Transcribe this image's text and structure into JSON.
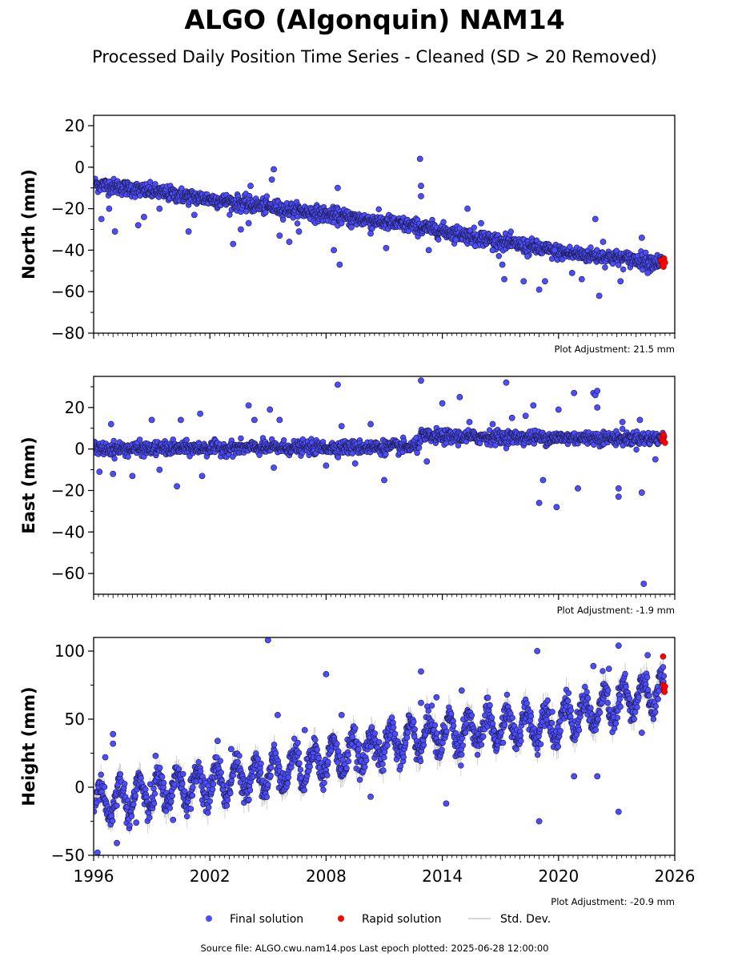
{
  "title": "ALGO (Algonquin) NAM14",
  "subtitle": "Processed Daily Position Time Series - Cleaned (SD > 20 Removed)",
  "colors": {
    "final": "#4d4dff",
    "rapid": "#ff0000",
    "stddev": "#c8c8c8",
    "marker_edge": "#1a1a40"
  },
  "legend": {
    "placement": "bottom-center",
    "final_label": "Final solution",
    "rapid_label": "Rapid solution",
    "std_label": "Std. Dev."
  },
  "footer": "Source file: ALGO.cwu.nam14.pos  Last epoch plotted: 2025-06-28 12:00:00",
  "chart_data": [
    {
      "type": "scatter",
      "ylabel": "North (mm)",
      "adjustment_label": "Plot Adjustment: 21.5 mm",
      "xlim": [
        1996.0,
        2026.0
      ],
      "ylim": [
        -80,
        25
      ],
      "yticks": [
        20,
        0,
        -20,
        -40,
        -60,
        -80
      ],
      "ytick_labels": [
        "20",
        "0",
        "−20",
        "−40",
        "−60",
        "−80"
      ],
      "trend": [
        [
          1996.0,
          -8
        ],
        [
          2013.0,
          -29
        ],
        [
          2016.0,
          -34
        ],
        [
          2020.0,
          -41
        ],
        [
          2025.5,
          -46
        ]
      ],
      "noise_sd": 1.8,
      "stddev_len": 1.5,
      "outliers": [
        [
          1996.4,
          -25
        ],
        [
          1996.8,
          -20
        ],
        [
          1997.1,
          -31
        ],
        [
          1998.3,
          -28
        ],
        [
          1998.6,
          -24
        ],
        [
          1999.4,
          -20
        ],
        [
          2000.9,
          -31
        ],
        [
          2001.2,
          -23
        ],
        [
          2003.2,
          -37
        ],
        [
          2003.6,
          -30
        ],
        [
          2004.0,
          -27
        ],
        [
          2004.1,
          -9
        ],
        [
          2005.2,
          -6
        ],
        [
          2005.3,
          -1
        ],
        [
          2005.6,
          -33
        ],
        [
          2006.1,
          -36
        ],
        [
          2006.6,
          -31
        ],
        [
          2008.6,
          -10
        ],
        [
          2008.7,
          -47
        ],
        [
          2008.4,
          -40
        ],
        [
          2009.3,
          -29
        ],
        [
          2010.3,
          -32
        ],
        [
          2011.1,
          -39
        ],
        [
          2012.9,
          -14
        ],
        [
          2012.9,
          -9
        ],
        [
          2012.85,
          4
        ],
        [
          2013.3,
          -40
        ],
        [
          2014.7,
          -35
        ],
        [
          2015.3,
          -20
        ],
        [
          2015.7,
          -38
        ],
        [
          2016.0,
          -27
        ],
        [
          2016.6,
          -40
        ],
        [
          2017.1,
          -47
        ],
        [
          2017.2,
          -54
        ],
        [
          2018.2,
          -55
        ],
        [
          2018.4,
          -43
        ],
        [
          2019.0,
          -59
        ],
        [
          2019.3,
          -55
        ],
        [
          2019.8,
          -40
        ],
        [
          2020.7,
          -51
        ],
        [
          2021.2,
          -54
        ],
        [
          2021.9,
          -25
        ],
        [
          2022.1,
          -62
        ],
        [
          2022.3,
          -36
        ],
        [
          2023.2,
          -55
        ],
        [
          2024.3,
          -34
        ],
        [
          2024.6,
          -51
        ]
      ],
      "rapid": [
        [
          2025.3,
          -45
        ],
        [
          2025.35,
          -47
        ],
        [
          2025.4,
          -46
        ],
        [
          2025.42,
          -48
        ],
        [
          2025.45,
          -44
        ],
        [
          2025.5,
          -46
        ]
      ],
      "adjustment_mm": 21.5
    },
    {
      "type": "scatter",
      "ylabel": "East (mm)",
      "adjustment_label": "Plot Adjustment: -1.9 mm",
      "xlim": [
        1996.0,
        2026.0
      ],
      "ylim": [
        -70,
        35
      ],
      "yticks": [
        20,
        0,
        -20,
        -40,
        -60
      ],
      "ytick_labels": [
        "20",
        "0",
        "−20",
        "−40",
        "−60"
      ],
      "trend": [
        [
          1996.0,
          0
        ],
        [
          2012.7,
          1
        ],
        [
          2012.9,
          6
        ],
        [
          2025.5,
          5
        ]
      ],
      "noise_sd": 1.6,
      "stddev_len": 1.2,
      "outliers": [
        [
          1996.3,
          -11
        ],
        [
          1996.9,
          12
        ],
        [
          1997.0,
          -12
        ],
        [
          1998.0,
          -13
        ],
        [
          1999.0,
          14
        ],
        [
          1999.4,
          -10
        ],
        [
          2000.3,
          -18
        ],
        [
          2000.5,
          14
        ],
        [
          2001.5,
          17
        ],
        [
          2001.6,
          -13
        ],
        [
          2004.0,
          21
        ],
        [
          2004.3,
          14
        ],
        [
          2005.1,
          19
        ],
        [
          2005.3,
          -9
        ],
        [
          2005.6,
          14
        ],
        [
          2008.0,
          -8
        ],
        [
          2008.6,
          31
        ],
        [
          2008.8,
          11
        ],
        [
          2009.5,
          -7
        ],
        [
          2010.3,
          12
        ],
        [
          2011.0,
          -15
        ],
        [
          2012.9,
          33
        ],
        [
          2013.2,
          -6
        ],
        [
          2014.0,
          22
        ],
        [
          2014.9,
          25
        ],
        [
          2015.4,
          13
        ],
        [
          2016.6,
          12
        ],
        [
          2017.3,
          32
        ],
        [
          2017.6,
          15
        ],
        [
          2018.3,
          16
        ],
        [
          2018.7,
          21
        ],
        [
          2019.0,
          -26
        ],
        [
          2019.2,
          -15
        ],
        [
          2019.9,
          -28
        ],
        [
          2020.0,
          19
        ],
        [
          2021.0,
          -19
        ],
        [
          2020.8,
          27
        ],
        [
          2021.8,
          27
        ],
        [
          2021.9,
          26
        ],
        [
          2022.0,
          28
        ],
        [
          2022.0,
          20
        ],
        [
          2023.1,
          -19
        ],
        [
          2023.1,
          -23
        ],
        [
          2023.3,
          13
        ],
        [
          2024.2,
          14
        ],
        [
          2024.3,
          -21
        ],
        [
          2024.4,
          -65
        ],
        [
          2025.0,
          -5
        ]
      ],
      "rapid": [
        [
          2025.35,
          5
        ],
        [
          2025.4,
          4
        ],
        [
          2025.45,
          6
        ],
        [
          2025.5,
          3
        ],
        [
          2025.42,
          7
        ]
      ],
      "adjustment_mm": -1.9
    },
    {
      "type": "scatter",
      "ylabel": "Height (mm)",
      "adjustment_label": "Plot Adjustment: -20.9 mm",
      "xlim": [
        1996.0,
        2026.0
      ],
      "ylim": [
        -50,
        110
      ],
      "yticks": [
        100,
        50,
        0,
        -50
      ],
      "ytick_labels": [
        "100",
        "50",
        "0",
        "−50"
      ],
      "xticks": [
        1996,
        2002,
        2008,
        2014,
        2020,
        2026
      ],
      "trend": [
        [
          1996.0,
          -12
        ],
        [
          2005.0,
          10
        ],
        [
          2013.0,
          38
        ],
        [
          2020.0,
          48
        ],
        [
          2025.5,
          72
        ]
      ],
      "noise_sd": 5.0,
      "seasonal_amp": 12,
      "stddev_len": 6,
      "outliers": [
        [
          1996.2,
          -48
        ],
        [
          1996.6,
          22
        ],
        [
          1997.0,
          39
        ],
        [
          1997.0,
          32
        ],
        [
          1997.2,
          -41
        ],
        [
          1998.2,
          -26
        ],
        [
          1999.2,
          23
        ],
        [
          2000.1,
          -24
        ],
        [
          2002.4,
          34
        ],
        [
          2003.1,
          28
        ],
        [
          2005.0,
          108
        ],
        [
          2005.5,
          53
        ],
        [
          2006.9,
          42
        ],
        [
          2008.0,
          83
        ],
        [
          2008.8,
          53
        ],
        [
          2010.3,
          -7
        ],
        [
          2012.9,
          85
        ],
        [
          2012.9,
          62
        ],
        [
          2013.7,
          66
        ],
        [
          2014.2,
          -12
        ],
        [
          2015.0,
          71
        ],
        [
          2018.9,
          100
        ],
        [
          2019.0,
          -25
        ],
        [
          2020.8,
          8
        ],
        [
          2021.8,
          89
        ],
        [
          2022.0,
          8
        ],
        [
          2022.6,
          87
        ],
        [
          2023.1,
          -18
        ],
        [
          2023.1,
          104
        ],
        [
          2024.3,
          40
        ],
        [
          2024.6,
          97
        ]
      ],
      "rapid": [
        [
          2025.4,
          96
        ],
        [
          2025.42,
          75
        ],
        [
          2025.45,
          72
        ],
        [
          2025.47,
          70
        ],
        [
          2025.5,
          74
        ]
      ],
      "adjustment_mm": -20.9
    }
  ]
}
